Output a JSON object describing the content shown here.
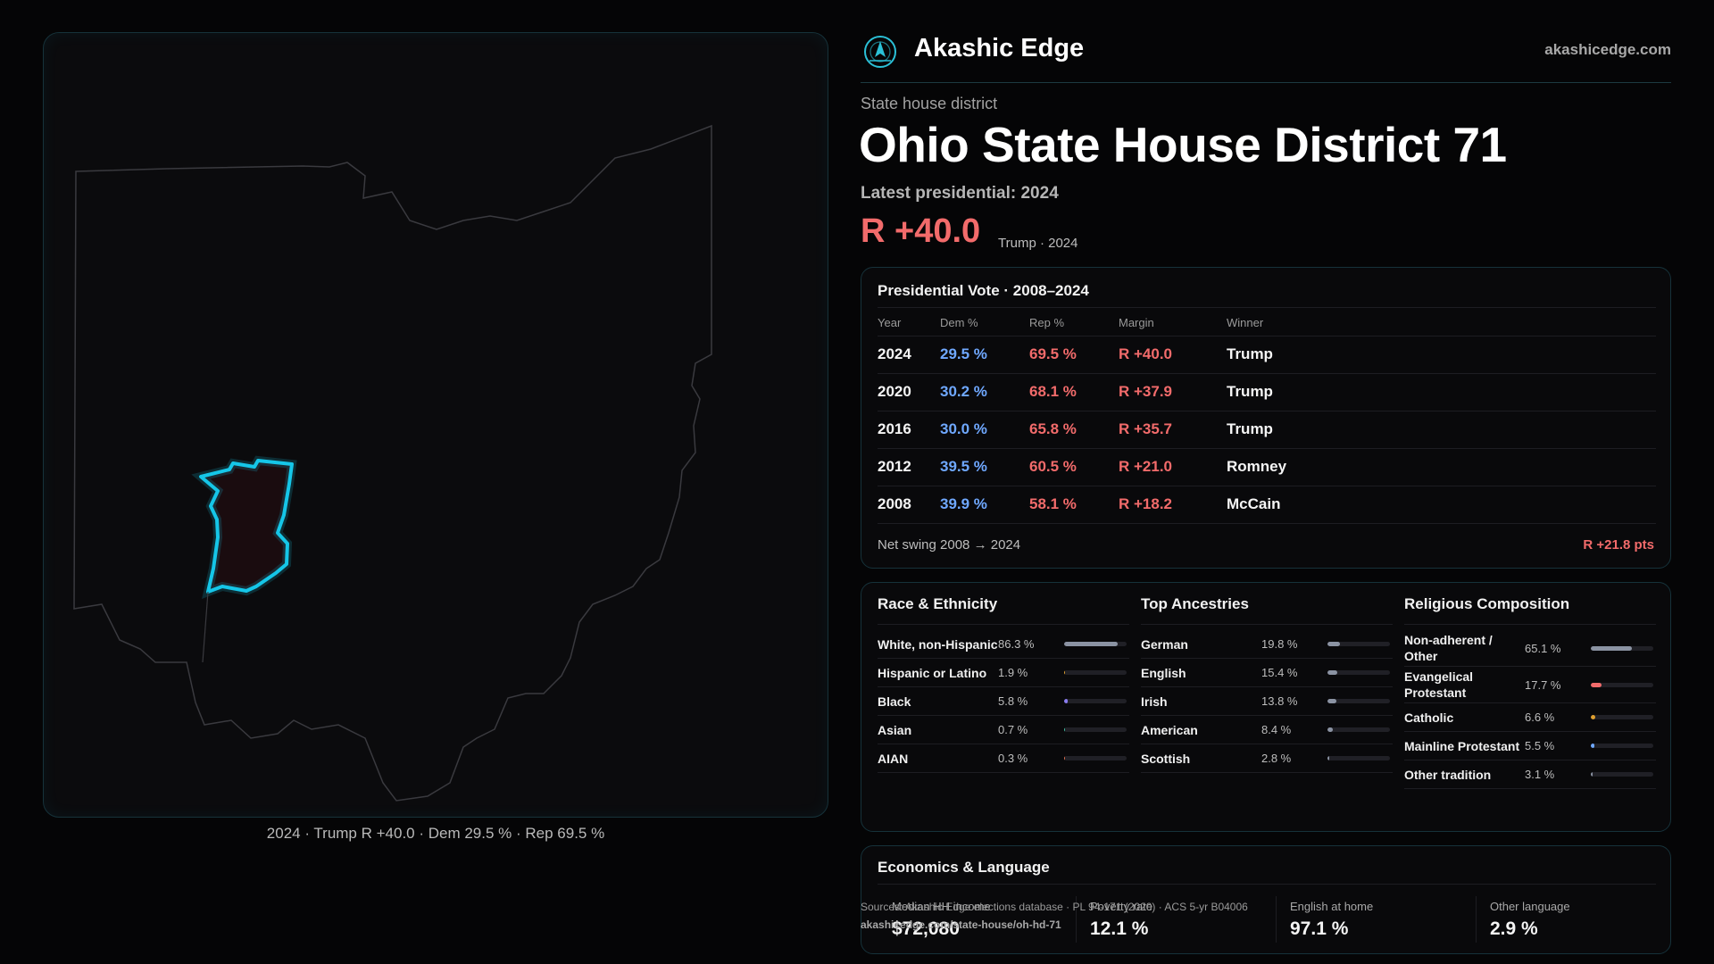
{
  "brand": {
    "name": "Akashic Edge",
    "url": "akashicedge.com",
    "logo_icon": "akashic-edge-logo-icon"
  },
  "header": {
    "eyebrow": "State house district",
    "title": "Ohio State House District 71",
    "latest": "Latest presidential: 2024",
    "margin": "R +40.0",
    "margin_sub": "Trump · 2024"
  },
  "map": {
    "caption": "2024 · Trump R +40.0 · Dem 29.5 % · Rep 69.5 %",
    "highlight_color": "#15c6e8"
  },
  "presidential": {
    "title": "Presidential Vote · 2008–2024",
    "columns": [
      "Year",
      "Dem %",
      "Rep %",
      "Margin",
      "Winner"
    ],
    "rows": [
      {
        "year": "2024",
        "dem": "29.5 %",
        "rep": "69.5 %",
        "margin": "R +40.0",
        "winner": "Trump"
      },
      {
        "year": "2020",
        "dem": "30.2 %",
        "rep": "68.1 %",
        "margin": "R +37.9",
        "winner": "Trump"
      },
      {
        "year": "2016",
        "dem": "30.0 %",
        "rep": "65.8 %",
        "margin": "R +35.7",
        "winner": "Trump"
      },
      {
        "year": "2012",
        "dem": "39.5 %",
        "rep": "60.5 %",
        "margin": "R +21.0",
        "winner": "Romney"
      },
      {
        "year": "2008",
        "dem": "39.9 %",
        "rep": "58.1 %",
        "margin": "R +18.2",
        "winner": "McCain"
      }
    ],
    "swing_label": "Net swing 2008 → 2024",
    "swing_value": "R +21.8 pts"
  },
  "race": {
    "title": "Race & Ethnicity",
    "items": [
      {
        "label": "White, non-Hispanic",
        "value": "86.3 %",
        "pct": 86.3,
        "color": "#8b93a3"
      },
      {
        "label": "Hispanic or Latino",
        "value": "1.9 %",
        "pct": 1.9,
        "color": "#e0a030"
      },
      {
        "label": "Black",
        "value": "5.8 %",
        "pct": 5.8,
        "color": "#8a7cf0"
      },
      {
        "label": "Asian",
        "value": "0.7 %",
        "pct": 0.7,
        "color": "#3fbfa0"
      },
      {
        "label": "AIAN",
        "value": "0.3 %",
        "pct": 0.3,
        "color": "#e07050"
      }
    ]
  },
  "ancestry": {
    "title": "Top Ancestries",
    "items": [
      {
        "label": "German",
        "value": "19.8 %",
        "pct": 19.8,
        "color": "#8b93a3"
      },
      {
        "label": "English",
        "value": "15.4 %",
        "pct": 15.4,
        "color": "#8b93a3"
      },
      {
        "label": "Irish",
        "value": "13.8 %",
        "pct": 13.8,
        "color": "#8b93a3"
      },
      {
        "label": "American",
        "value": "8.4 %",
        "pct": 8.4,
        "color": "#8b93a3"
      },
      {
        "label": "Scottish",
        "value": "2.8 %",
        "pct": 2.8,
        "color": "#8b93a3"
      }
    ]
  },
  "religion": {
    "title": "Religious Composition",
    "items": [
      {
        "label": "Non-adherent / Other",
        "value": "65.1 %",
        "pct": 65.1,
        "color": "#8b93a3"
      },
      {
        "label": "Evangelical Protestant",
        "value": "17.7 %",
        "pct": 17.7,
        "color": "#f26b6b"
      },
      {
        "label": "Catholic",
        "value": "6.6 %",
        "pct": 6.6,
        "color": "#e0a030"
      },
      {
        "label": "Mainline Protestant",
        "value": "5.5 %",
        "pct": 5.5,
        "color": "#6fa8ff"
      },
      {
        "label": "Other tradition",
        "value": "3.1 %",
        "pct": 3.1,
        "color": "#8b93a3"
      }
    ]
  },
  "economics": {
    "title": "Economics & Language",
    "stats": [
      {
        "label": "Median HH income",
        "value": "$72,080"
      },
      {
        "label": "Poverty rate",
        "value": "12.1 %"
      },
      {
        "label": "English at home",
        "value": "97.1 %"
      },
      {
        "label": "Other language",
        "value": "2.9 %"
      }
    ]
  },
  "sources": {
    "text": "Sources: Akashic Edge elections database · PL 94-171 (2020) · ACS 5-yr B04006",
    "url": "akashicedge.com/state-house/oh-hd-71"
  }
}
